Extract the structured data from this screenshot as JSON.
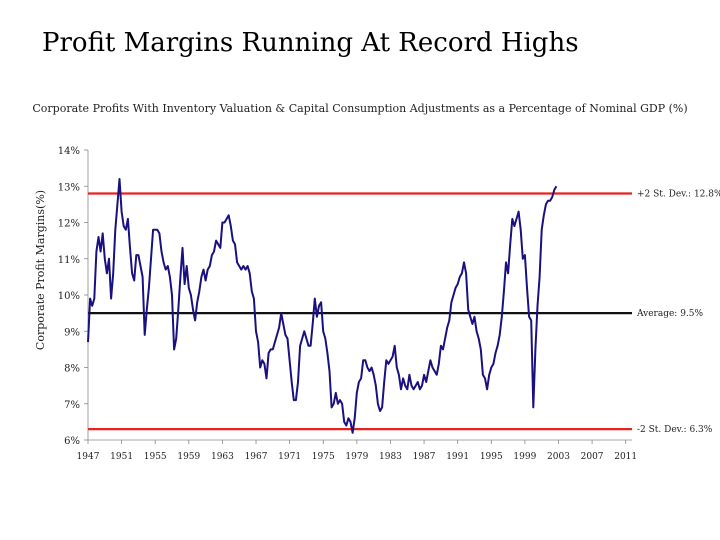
{
  "slide_title": "Profit Margins Running At Record Highs",
  "chart_data": {
    "type": "line",
    "title": "Corporate Profits With Inventory Valuation & Capital Consumption Adjustments as a Percentage of Nominal GDP (%)",
    "xlabel": "",
    "ylabel": "Corporate Profit Margins(%)",
    "ylim": [
      6,
      14
    ],
    "xlim": [
      1947,
      2011.75
    ],
    "x_ticks": [
      "1947",
      "1951",
      "1955",
      "1959",
      "1963",
      "1967",
      "1971",
      "1975",
      "1979",
      "1983",
      "1987",
      "1991",
      "1995",
      "1999",
      "2003",
      "2007",
      "2011"
    ],
    "y_ticks": [
      "6%",
      "7%",
      "8%",
      "9%",
      "10%",
      "11%",
      "12%",
      "13%",
      "14%"
    ],
    "grid": false,
    "legend": "none",
    "series": [
      {
        "color": "#1a1080",
        "points": [
          [
            1947.0,
            8.7
          ],
          [
            1947.25,
            9.9
          ],
          [
            1947.5,
            9.7
          ],
          [
            1947.75,
            9.9
          ],
          [
            1948.0,
            11.2
          ],
          [
            1948.25,
            11.6
          ],
          [
            1948.5,
            11.2
          ],
          [
            1948.75,
            11.7
          ],
          [
            1949.0,
            11.0
          ],
          [
            1949.25,
            10.6
          ],
          [
            1949.5,
            11.0
          ],
          [
            1949.75,
            9.9
          ],
          [
            1950.0,
            10.6
          ],
          [
            1950.25,
            11.8
          ],
          [
            1950.5,
            12.5
          ],
          [
            1950.75,
            13.2
          ],
          [
            1951.0,
            12.3
          ],
          [
            1951.25,
            11.9
          ],
          [
            1951.5,
            11.8
          ],
          [
            1951.75,
            12.1
          ],
          [
            1952.0,
            11.3
          ],
          [
            1952.25,
            10.6
          ],
          [
            1952.5,
            10.4
          ],
          [
            1952.75,
            11.1
          ],
          [
            1953.0,
            11.1
          ],
          [
            1953.25,
            10.8
          ],
          [
            1953.5,
            10.5
          ],
          [
            1953.75,
            8.9
          ],
          [
            1954.0,
            9.6
          ],
          [
            1954.25,
            10.2
          ],
          [
            1954.5,
            11.0
          ],
          [
            1954.75,
            11.8
          ],
          [
            1955.0,
            11.8
          ],
          [
            1955.25,
            11.8
          ],
          [
            1955.5,
            11.7
          ],
          [
            1955.75,
            11.2
          ],
          [
            1956.0,
            10.9
          ],
          [
            1956.25,
            10.7
          ],
          [
            1956.5,
            10.8
          ],
          [
            1956.75,
            10.5
          ],
          [
            1957.0,
            10.0
          ],
          [
            1957.25,
            8.5
          ],
          [
            1957.5,
            8.8
          ],
          [
            1957.75,
            9.6
          ],
          [
            1958.0,
            10.5
          ],
          [
            1958.25,
            11.3
          ],
          [
            1958.5,
            10.3
          ],
          [
            1958.75,
            10.8
          ],
          [
            1959.0,
            10.2
          ],
          [
            1959.25,
            10.0
          ],
          [
            1959.5,
            9.6
          ],
          [
            1959.75,
            9.3
          ],
          [
            1960.0,
            9.8
          ],
          [
            1960.25,
            10.1
          ],
          [
            1960.5,
            10.5
          ],
          [
            1960.75,
            10.7
          ],
          [
            1961.0,
            10.4
          ],
          [
            1961.25,
            10.7
          ],
          [
            1961.5,
            10.8
          ],
          [
            1961.75,
            11.1
          ],
          [
            1962.0,
            11.2
          ],
          [
            1962.25,
            11.5
          ],
          [
            1962.5,
            11.4
          ],
          [
            1962.75,
            11.3
          ],
          [
            1963.0,
            12.0
          ],
          [
            1963.25,
            12.0
          ],
          [
            1963.5,
            12.1
          ],
          [
            1963.75,
            12.2
          ],
          [
            1964.0,
            11.9
          ],
          [
            1964.25,
            11.5
          ],
          [
            1964.5,
            11.4
          ],
          [
            1964.75,
            10.9
          ],
          [
            1965.0,
            10.8
          ],
          [
            1965.25,
            10.7
          ],
          [
            1965.5,
            10.8
          ],
          [
            1965.75,
            10.7
          ],
          [
            1966.0,
            10.8
          ],
          [
            1966.25,
            10.6
          ],
          [
            1966.5,
            10.1
          ],
          [
            1966.75,
            9.9
          ],
          [
            1967.0,
            9.0
          ],
          [
            1967.25,
            8.7
          ],
          [
            1967.5,
            8.0
          ],
          [
            1967.75,
            8.2
          ],
          [
            1968.0,
            8.1
          ],
          [
            1968.25,
            7.7
          ],
          [
            1968.5,
            8.4
          ],
          [
            1968.75,
            8.5
          ],
          [
            1969.0,
            8.5
          ],
          [
            1969.25,
            8.7
          ],
          [
            1969.5,
            8.9
          ],
          [
            1969.75,
            9.1
          ],
          [
            1970.0,
            9.5
          ],
          [
            1970.25,
            9.2
          ],
          [
            1970.5,
            8.9
          ],
          [
            1970.75,
            8.8
          ],
          [
            1971.0,
            8.2
          ],
          [
            1971.25,
            7.6
          ],
          [
            1971.5,
            7.1
          ],
          [
            1971.75,
            7.1
          ],
          [
            1972.0,
            7.6
          ],
          [
            1972.25,
            8.6
          ],
          [
            1972.5,
            8.8
          ],
          [
            1972.75,
            9.0
          ],
          [
            1973.0,
            8.8
          ],
          [
            1973.25,
            8.6
          ],
          [
            1973.5,
            8.6
          ],
          [
            1973.75,
            9.2
          ],
          [
            1974.0,
            9.9
          ],
          [
            1974.25,
            9.4
          ],
          [
            1974.5,
            9.7
          ],
          [
            1974.75,
            9.8
          ],
          [
            1975.0,
            9.0
          ],
          [
            1975.25,
            8.8
          ],
          [
            1975.5,
            8.4
          ],
          [
            1975.75,
            7.9
          ],
          [
            1976.0,
            6.9
          ],
          [
            1976.25,
            7.0
          ],
          [
            1976.5,
            7.3
          ],
          [
            1976.75,
            7.0
          ],
          [
            1977.0,
            7.1
          ],
          [
            1977.25,
            7.0
          ],
          [
            1977.5,
            6.5
          ],
          [
            1977.75,
            6.4
          ],
          [
            1978.0,
            6.6
          ],
          [
            1978.25,
            6.5
          ],
          [
            1978.5,
            6.2
          ],
          [
            1978.75,
            6.6
          ],
          [
            1979.0,
            7.3
          ],
          [
            1979.25,
            7.6
          ],
          [
            1979.5,
            7.7
          ],
          [
            1979.75,
            8.2
          ],
          [
            1980.0,
            8.2
          ],
          [
            1980.25,
            8.0
          ],
          [
            1980.5,
            7.9
          ],
          [
            1980.75,
            8.0
          ],
          [
            1981.0,
            7.8
          ],
          [
            1981.25,
            7.5
          ],
          [
            1981.5,
            7.0
          ],
          [
            1981.75,
            6.8
          ],
          [
            1982.0,
            6.9
          ],
          [
            1982.25,
            7.6
          ],
          [
            1982.5,
            8.2
          ],
          [
            1982.75,
            8.1
          ],
          [
            1983.0,
            8.2
          ],
          [
            1983.25,
            8.3
          ],
          [
            1983.5,
            8.6
          ],
          [
            1983.75,
            8.0
          ],
          [
            1984.0,
            7.8
          ],
          [
            1984.25,
            7.4
          ],
          [
            1984.5,
            7.7
          ],
          [
            1984.75,
            7.5
          ],
          [
            1985.0,
            7.4
          ],
          [
            1985.25,
            7.8
          ],
          [
            1985.5,
            7.5
          ],
          [
            1985.75,
            7.4
          ],
          [
            1986.0,
            7.5
          ],
          [
            1986.25,
            7.6
          ],
          [
            1986.5,
            7.4
          ],
          [
            1986.75,
            7.5
          ],
          [
            1987.0,
            7.8
          ],
          [
            1987.25,
            7.6
          ],
          [
            1987.5,
            7.9
          ],
          [
            1987.75,
            8.2
          ],
          [
            1988.0,
            8.0
          ],
          [
            1988.25,
            7.9
          ],
          [
            1988.5,
            7.8
          ],
          [
            1988.75,
            8.1
          ],
          [
            1989.0,
            8.6
          ],
          [
            1989.25,
            8.5
          ],
          [
            1989.5,
            8.8
          ],
          [
            1989.75,
            9.1
          ],
          [
            1990.0,
            9.3
          ],
          [
            1990.25,
            9.8
          ],
          [
            1990.5,
            10.0
          ],
          [
            1990.75,
            10.2
          ],
          [
            1991.0,
            10.3
          ],
          [
            1991.25,
            10.5
          ],
          [
            1991.5,
            10.6
          ],
          [
            1991.75,
            10.9
          ],
          [
            1992.0,
            10.6
          ],
          [
            1992.25,
            9.6
          ],
          [
            1992.5,
            9.4
          ],
          [
            1992.75,
            9.2
          ],
          [
            1993.0,
            9.4
          ],
          [
            1993.25,
            9.0
          ],
          [
            1993.5,
            8.8
          ],
          [
            1993.75,
            8.5
          ],
          [
            1994.0,
            7.8
          ],
          [
            1994.25,
            7.7
          ],
          [
            1994.5,
            7.4
          ],
          [
            1994.75,
            7.8
          ],
          [
            1995.0,
            8.0
          ],
          [
            1995.25,
            8.1
          ],
          [
            1995.5,
            8.4
          ],
          [
            1995.75,
            8.6
          ],
          [
            1996.0,
            8.9
          ],
          [
            1996.25,
            9.4
          ],
          [
            1996.5,
            10.1
          ],
          [
            1996.75,
            10.9
          ],
          [
            1997.0,
            10.6
          ],
          [
            1997.25,
            11.4
          ],
          [
            1997.5,
            12.1
          ],
          [
            1997.75,
            11.9
          ],
          [
            1998.0,
            12.1
          ],
          [
            1998.25,
            12.3
          ],
          [
            1998.5,
            11.8
          ],
          [
            1998.75,
            11.0
          ],
          [
            1999.0,
            11.1
          ],
          [
            1999.25,
            10.2
          ],
          [
            1999.5,
            9.4
          ],
          [
            1999.75,
            9.3
          ],
          [
            2000.0,
            6.9
          ],
          [
            2000.25,
            8.5
          ],
          [
            2000.5,
            9.7
          ],
          [
            2000.75,
            10.5
          ],
          [
            2001.0,
            11.8
          ],
          [
            2001.25,
            12.2
          ],
          [
            2001.5,
            12.5
          ],
          [
            2001.75,
            12.6
          ],
          [
            2002.0,
            12.6
          ],
          [
            2002.25,
            12.7
          ],
          [
            2002.5,
            12.9
          ],
          [
            2002.75,
            13.0
          ]
        ]
      }
    ],
    "reference_lines": [
      {
        "value": 12.8,
        "label": "+2 St. Dev.: 12.8%",
        "color": "#e8231f"
      },
      {
        "value": 9.5,
        "label": "Average: 9.5%",
        "color": "#111111"
      },
      {
        "value": 6.3,
        "label": "-2 St. Dev.: 6.3%",
        "color": "#e8231f"
      }
    ]
  }
}
